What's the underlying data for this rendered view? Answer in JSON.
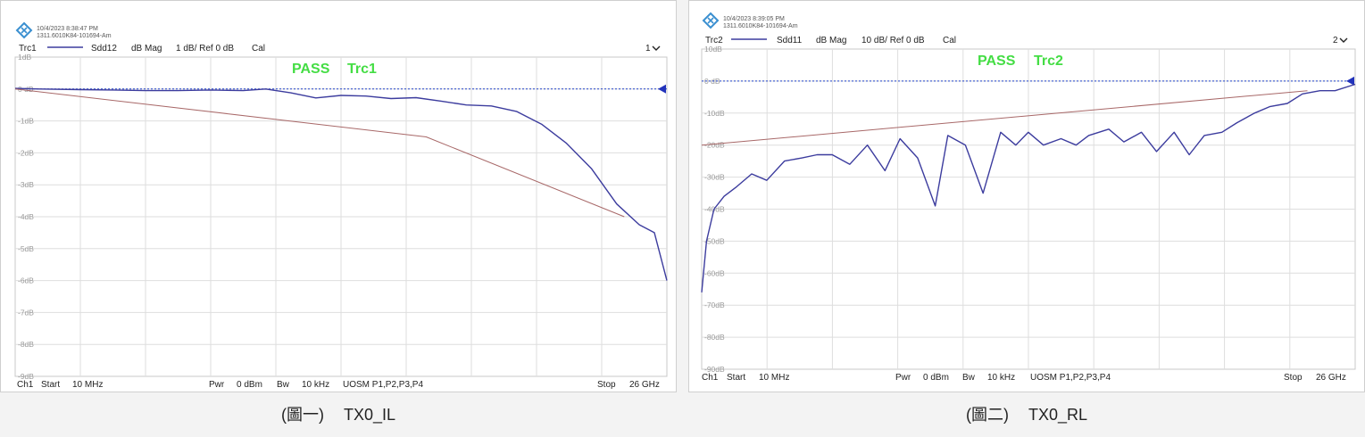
{
  "charts": [
    {
      "header": {
        "timestamp": "10/4/2023 8:38:47 PM",
        "device_id": "1311.6010K84-101694-Am",
        "trace": "Trc1",
        "param": "Sdd12",
        "format": "dB Mag",
        "scale": "1 dB/ Ref 0 dB",
        "cal": "Cal",
        "window": "1"
      },
      "pass_label": "PASS",
      "pass_trace": "Trc1",
      "footer": {
        "channel": "Ch1",
        "start_label": "Start",
        "start_value": "10 MHz",
        "pwr_label": "Pwr",
        "pwr_value": "0 dBm",
        "bw_label": "Bw",
        "bw_value": "10 kHz",
        "uosm": "UOSM P1,P2,P3,P4",
        "stop_label": "Stop",
        "stop_value": "26 GHz"
      },
      "caption": {
        "num": "(圖一)",
        "title": "TX0_IL"
      },
      "chart_data": {
        "type": "line",
        "x_start_ghz": 0.01,
        "x_stop_ghz": 26,
        "y_ticks": [
          "1dB",
          "0 dB",
          "-1dB",
          "-2dB",
          "-3dB",
          "-4dB",
          "-5dB",
          "-6dB",
          "-7dB",
          "-8dB",
          "-9dB"
        ],
        "ylim": [
          -9,
          1
        ],
        "reference_db": 0,
        "grid": true,
        "colors": {
          "trace": "#3c3c9e",
          "limit": "#a86868",
          "pass": "#44dd44",
          "reference": "#2244cc"
        },
        "series": [
          {
            "name": "Sdd12",
            "x": [
              0.01,
              1.0,
              2.6,
              3.9,
              5.2,
              6.5,
              7.8,
              9.1,
              10.0,
              11.0,
              12.0,
              13.0,
              14.0,
              15.0,
              16.0,
              17.0,
              18.0,
              19.0,
              20.0,
              21.0,
              22.0,
              23.0,
              24.0,
              24.9,
              25.5,
              26.0
            ],
            "y": [
              0.02,
              0.0,
              -0.02,
              -0.03,
              -0.05,
              -0.05,
              -0.03,
              -0.05,
              -0.0,
              -0.12,
              -0.28,
              -0.2,
              -0.22,
              -0.3,
              -0.27,
              -0.38,
              -0.5,
              -0.53,
              -0.7,
              -1.1,
              -1.7,
              -2.5,
              -3.6,
              -4.25,
              -4.5,
              -6.0
            ]
          },
          {
            "name": "Limit",
            "x": [
              0.01,
              16.4,
              24.3
            ],
            "y": [
              0.0,
              -1.5,
              -4.0
            ]
          }
        ]
      }
    },
    {
      "header": {
        "timestamp": "10/4/2023 8:39:05 PM",
        "device_id": "1311.6010K84-101694-Am",
        "trace": "Trc2",
        "param": "Sdd11",
        "format": "dB Mag",
        "scale": "10 dB/ Ref 0 dB",
        "cal": "Cal",
        "window": "2"
      },
      "pass_label": "PASS",
      "pass_trace": "Trc2",
      "footer": {
        "channel": "Ch1",
        "start_label": "Start",
        "start_value": "10 MHz",
        "pwr_label": "Pwr",
        "pwr_value": "0 dBm",
        "bw_label": "Bw",
        "bw_value": "10 kHz",
        "uosm": "UOSM P1,P2,P3,P4",
        "stop_label": "Stop",
        "stop_value": "26 GHz"
      },
      "caption": {
        "num": "(圖二)",
        "title": "TX0_RL"
      },
      "chart_data": {
        "type": "line",
        "x_start_ghz": 0.01,
        "x_stop_ghz": 26,
        "y_ticks": [
          "10dB",
          "0 dB",
          "-10dB",
          "-20dB",
          "-30dB",
          "-40dB",
          "-50dB",
          "-60dB",
          "-70dB",
          "-80dB",
          "-90dB"
        ],
        "ylim": [
          -90,
          10
        ],
        "reference_db": 0,
        "grid": true,
        "colors": {
          "trace": "#3c3c9e",
          "limit": "#a86868",
          "pass": "#44dd44",
          "reference": "#2244cc"
        },
        "series": [
          {
            "name": "Sdd11",
            "x": [
              0.01,
              0.2,
              0.5,
              0.9,
              1.4,
              2.0,
              2.6,
              3.3,
              4.0,
              4.6,
              5.2,
              5.9,
              6.6,
              7.3,
              7.9,
              8.6,
              9.3,
              9.8,
              10.5,
              11.2,
              11.9,
              12.5,
              13.0,
              13.6,
              14.3,
              14.9,
              15.4,
              16.2,
              16.8,
              17.5,
              18.1,
              18.8,
              19.4,
              20.0,
              20.7,
              21.3,
              22.0,
              22.6,
              23.3,
              23.9,
              24.6,
              25.2,
              26.0
            ],
            "y": [
              -66,
              -50,
              -40,
              -36,
              -33,
              -29,
              -31,
              -25,
              -24,
              -23,
              -23,
              -26,
              -20,
              -28,
              -18,
              -24,
              -39,
              -17,
              -20,
              -35,
              -16,
              -20,
              -16,
              -20,
              -18,
              -20,
              -17,
              -15,
              -19,
              -16,
              -22,
              -16,
              -23,
              -17,
              -16,
              -13,
              -10,
              -8,
              -7,
              -4,
              -3,
              -3,
              -1
            ]
          },
          {
            "name": "Limit",
            "x": [
              0.01,
              24.1
            ],
            "y": [
              -20.0,
              -3.0
            ]
          }
        ]
      }
    }
  ]
}
